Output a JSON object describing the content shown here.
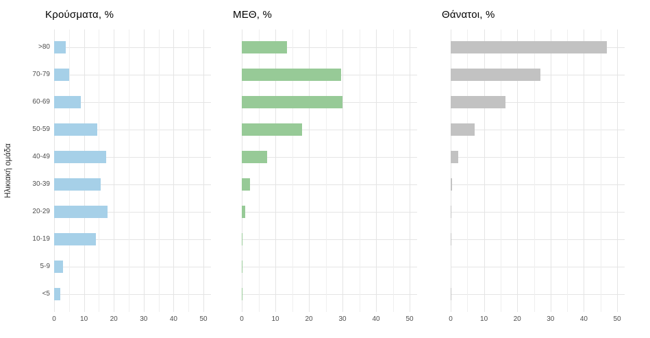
{
  "figure": {
    "y_axis_title": "Ηλικιακή ομάδα",
    "categories": [
      ">80",
      "70-79",
      "60-69",
      "50-59",
      "40-49",
      "30-39",
      "20-29",
      "10-19",
      "5-9",
      "<5"
    ],
    "x_tick_labels": [
      "0",
      "10",
      "20",
      "30",
      "40",
      "50"
    ]
  },
  "chart_data": [
    {
      "type": "bar",
      "orientation": "horizontal",
      "title": "Κρούσματα, %",
      "bar_color": "#a6d0e8",
      "categories": [
        ">80",
        "70-79",
        "60-69",
        "50-59",
        "40-49",
        "30-39",
        "20-29",
        "10-19",
        "5-9",
        "<5"
      ],
      "values": [
        4,
        5,
        9,
        14.5,
        17.5,
        15.5,
        18,
        14,
        3,
        2
      ],
      "xlim": [
        0,
        52.5
      ],
      "xticks": [
        0,
        10,
        20,
        30,
        40,
        50
      ],
      "minor_grid_step": 5,
      "grid": "on",
      "ylabel": "Ηλικιακή ομάδα"
    },
    {
      "type": "bar",
      "orientation": "horizontal",
      "title": "ΜΕΘ, %",
      "bar_color": "#97ca97",
      "categories": [
        ">80",
        "70-79",
        "60-69",
        "50-59",
        "40-49",
        "30-39",
        "20-29",
        "10-19",
        "5-9",
        "<5"
      ],
      "values": [
        13.5,
        29.5,
        30,
        18,
        7.5,
        2.5,
        1,
        0.2,
        0.2,
        0.2
      ],
      "xlim": [
        0,
        52.5
      ],
      "xticks": [
        0,
        10,
        20,
        30,
        40,
        50
      ],
      "minor_grid_step": 5,
      "grid": "on",
      "ylabel": ""
    },
    {
      "type": "bar",
      "orientation": "horizontal",
      "title": "Θάνατοι, %",
      "bar_color": "#c2c2c2",
      "categories": [
        ">80",
        "70-79",
        "60-69",
        "50-59",
        "40-49",
        "30-39",
        "20-29",
        "10-19",
        "5-9",
        "<5"
      ],
      "values": [
        47,
        27,
        16.5,
        7.3,
        2.3,
        0.5,
        0.3,
        0.2,
        0,
        0.2
      ],
      "xlim": [
        0,
        52.5
      ],
      "xticks": [
        0,
        10,
        20,
        30,
        40,
        50
      ],
      "minor_grid_step": 5,
      "grid": "on",
      "ylabel": ""
    }
  ],
  "colors": {
    "background": "#ffffff",
    "grid_major": "#e4e4e4",
    "grid_minor": "#efefef",
    "axis_text": "#4d4d4d",
    "title_text": "#000000"
  }
}
